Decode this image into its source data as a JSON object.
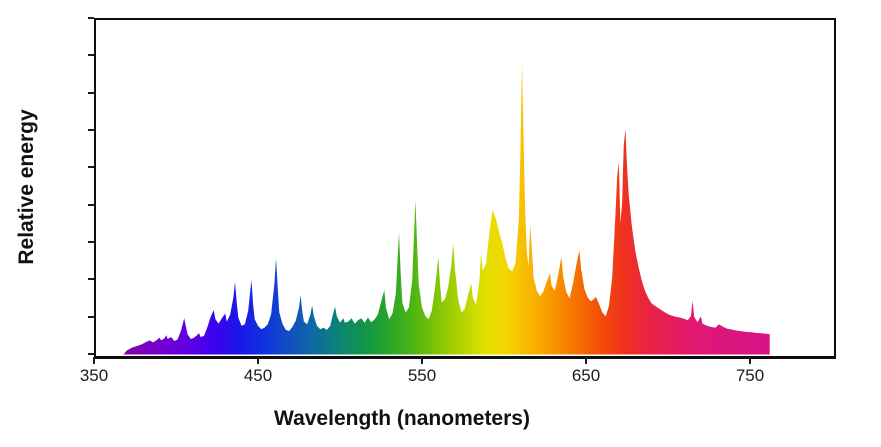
{
  "figure": {
    "xlabel": "Wavelength (nanometers)",
    "ylabel": "Relative energy"
  },
  "chart_data": {
    "type": "area",
    "title": "",
    "xlabel": "Wavelength (nanometers)",
    "ylabel": "Relative energy",
    "x_unit": "nanometers",
    "xlim": [
      350,
      800
    ],
    "ylim": [
      0,
      1
    ],
    "x_ticks": [
      350,
      450,
      550,
      650,
      750
    ],
    "y_ticks": {
      "labeled": false,
      "count": 10
    },
    "grid": false,
    "legend": null,
    "description": "Emission spectrum (relative energy vs wavelength), area filled with spectral rainbow gradient from violet through blue, green, yellow, orange, red to magenta-pink",
    "notable_peaks_nm": [
      405,
      423,
      436,
      446,
      461,
      476,
      527,
      536,
      546,
      560,
      569,
      586,
      593,
      611,
      616,
      635,
      646,
      670,
      674,
      715
    ],
    "points": [
      [
        368,
        0
      ],
      [
        370,
        0.012
      ],
      [
        373,
        0.02
      ],
      [
        376,
        0.025
      ],
      [
        379,
        0.03
      ],
      [
        382,
        0.038
      ],
      [
        384,
        0.042
      ],
      [
        386,
        0.036
      ],
      [
        388,
        0.042
      ],
      [
        390,
        0.05
      ],
      [
        391,
        0.042
      ],
      [
        393,
        0.048
      ],
      [
        394,
        0.057
      ],
      [
        395,
        0.046
      ],
      [
        397,
        0.052
      ],
      [
        399,
        0.04
      ],
      [
        401,
        0.045
      ],
      [
        403,
        0.07
      ],
      [
        405,
        0.108
      ],
      [
        406,
        0.085
      ],
      [
        407,
        0.06
      ],
      [
        409,
        0.046
      ],
      [
        411,
        0.05
      ],
      [
        413,
        0.058
      ],
      [
        414,
        0.064
      ],
      [
        415,
        0.052
      ],
      [
        417,
        0.055
      ],
      [
        419,
        0.08
      ],
      [
        421,
        0.11
      ],
      [
        423,
        0.132
      ],
      [
        424,
        0.105
      ],
      [
        426,
        0.092
      ],
      [
        428,
        0.108
      ],
      [
        430,
        0.122
      ],
      [
        431,
        0.098
      ],
      [
        433,
        0.118
      ],
      [
        435,
        0.17
      ],
      [
        436,
        0.216
      ],
      [
        437,
        0.155
      ],
      [
        438,
        0.11
      ],
      [
        440,
        0.085
      ],
      [
        442,
        0.09
      ],
      [
        444,
        0.13
      ],
      [
        446,
        0.222
      ],
      [
        447,
        0.15
      ],
      [
        448,
        0.105
      ],
      [
        450,
        0.085
      ],
      [
        452,
        0.075
      ],
      [
        454,
        0.08
      ],
      [
        456,
        0.09
      ],
      [
        458,
        0.12
      ],
      [
        460,
        0.21
      ],
      [
        461,
        0.286
      ],
      [
        462,
        0.2
      ],
      [
        463,
        0.125
      ],
      [
        465,
        0.09
      ],
      [
        467,
        0.073
      ],
      [
        469,
        0.07
      ],
      [
        471,
        0.082
      ],
      [
        473,
        0.1
      ],
      [
        475,
        0.14
      ],
      [
        476,
        0.176
      ],
      [
        477,
        0.128
      ],
      [
        478,
        0.098
      ],
      [
        480,
        0.09
      ],
      [
        482,
        0.12
      ],
      [
        483,
        0.146
      ],
      [
        484,
        0.115
      ],
      [
        486,
        0.085
      ],
      [
        488,
        0.075
      ],
      [
        490,
        0.08
      ],
      [
        492,
        0.073
      ],
      [
        494,
        0.085
      ],
      [
        496,
        0.125
      ],
      [
        497,
        0.142
      ],
      [
        498,
        0.115
      ],
      [
        500,
        0.095
      ],
      [
        502,
        0.108
      ],
      [
        503,
        0.095
      ],
      [
        505,
        0.098
      ],
      [
        507,
        0.108
      ],
      [
        509,
        0.092
      ],
      [
        511,
        0.102
      ],
      [
        513,
        0.108
      ],
      [
        515,
        0.094
      ],
      [
        517,
        0.11
      ],
      [
        519,
        0.096
      ],
      [
        521,
        0.104
      ],
      [
        523,
        0.118
      ],
      [
        525,
        0.155
      ],
      [
        527,
        0.192
      ],
      [
        528,
        0.14
      ],
      [
        530,
        0.105
      ],
      [
        532,
        0.122
      ],
      [
        534,
        0.18
      ],
      [
        536,
        0.362
      ],
      [
        537,
        0.24
      ],
      [
        538,
        0.155
      ],
      [
        540,
        0.125
      ],
      [
        542,
        0.14
      ],
      [
        544,
        0.22
      ],
      [
        546,
        0.46
      ],
      [
        547,
        0.33
      ],
      [
        548,
        0.21
      ],
      [
        550,
        0.14
      ],
      [
        552,
        0.115
      ],
      [
        554,
        0.105
      ],
      [
        556,
        0.13
      ],
      [
        558,
        0.2
      ],
      [
        560,
        0.29
      ],
      [
        561,
        0.21
      ],
      [
        562,
        0.155
      ],
      [
        564,
        0.165
      ],
      [
        566,
        0.2
      ],
      [
        568,
        0.27
      ],
      [
        569,
        0.33
      ],
      [
        570,
        0.26
      ],
      [
        572,
        0.165
      ],
      [
        574,
        0.125
      ],
      [
        576,
        0.135
      ],
      [
        578,
        0.175
      ],
      [
        580,
        0.212
      ],
      [
        581,
        0.17
      ],
      [
        583,
        0.148
      ],
      [
        585,
        0.22
      ],
      [
        586,
        0.3
      ],
      [
        587,
        0.25
      ],
      [
        589,
        0.27
      ],
      [
        591,
        0.36
      ],
      [
        593,
        0.43
      ],
      [
        595,
        0.405
      ],
      [
        597,
        0.365
      ],
      [
        599,
        0.33
      ],
      [
        601,
        0.285
      ],
      [
        603,
        0.255
      ],
      [
        605,
        0.248
      ],
      [
        607,
        0.272
      ],
      [
        609,
        0.4
      ],
      [
        610,
        0.6
      ],
      [
        611,
        0.868
      ],
      [
        612,
        0.62
      ],
      [
        613,
        0.41
      ],
      [
        614,
        0.3
      ],
      [
        615,
        0.26
      ],
      [
        616,
        0.39
      ],
      [
        617,
        0.31
      ],
      [
        618,
        0.23
      ],
      [
        620,
        0.19
      ],
      [
        622,
        0.173
      ],
      [
        624,
        0.188
      ],
      [
        626,
        0.215
      ],
      [
        628,
        0.242
      ],
      [
        629,
        0.205
      ],
      [
        631,
        0.19
      ],
      [
        633,
        0.235
      ],
      [
        635,
        0.29
      ],
      [
        636,
        0.235
      ],
      [
        638,
        0.185
      ],
      [
        640,
        0.168
      ],
      [
        642,
        0.21
      ],
      [
        644,
        0.265
      ],
      [
        646,
        0.31
      ],
      [
        647,
        0.255
      ],
      [
        649,
        0.195
      ],
      [
        651,
        0.17
      ],
      [
        653,
        0.158
      ],
      [
        655,
        0.166
      ],
      [
        656,
        0.172
      ],
      [
        658,
        0.15
      ],
      [
        660,
        0.125
      ],
      [
        662,
        0.114
      ],
      [
        664,
        0.145
      ],
      [
        666,
        0.23
      ],
      [
        668,
        0.42
      ],
      [
        669,
        0.53
      ],
      [
        670,
        0.572
      ],
      [
        671,
        0.39
      ],
      [
        672,
        0.45
      ],
      [
        673,
        0.62
      ],
      [
        674,
        0.672
      ],
      [
        675,
        0.56
      ],
      [
        676,
        0.48
      ],
      [
        678,
        0.38
      ],
      [
        680,
        0.31
      ],
      [
        682,
        0.26
      ],
      [
        684,
        0.22
      ],
      [
        686,
        0.19
      ],
      [
        688,
        0.168
      ],
      [
        690,
        0.152
      ],
      [
        692,
        0.145
      ],
      [
        695,
        0.135
      ],
      [
        698,
        0.126
      ],
      [
        701,
        0.118
      ],
      [
        704,
        0.113
      ],
      [
        707,
        0.11
      ],
      [
        710,
        0.106
      ],
      [
        712,
        0.102
      ],
      [
        714,
        0.115
      ],
      [
        715,
        0.16
      ],
      [
        716,
        0.112
      ],
      [
        718,
        0.096
      ],
      [
        720,
        0.114
      ],
      [
        721,
        0.092
      ],
      [
        723,
        0.087
      ],
      [
        726,
        0.082
      ],
      [
        729,
        0.08
      ],
      [
        731,
        0.09
      ],
      [
        733,
        0.084
      ],
      [
        736,
        0.077
      ],
      [
        739,
        0.074
      ],
      [
        742,
        0.071
      ],
      [
        745,
        0.069
      ],
      [
        748,
        0.067
      ],
      [
        751,
        0.066
      ],
      [
        754,
        0.064
      ],
      [
        757,
        0.063
      ],
      [
        760,
        0.062
      ],
      [
        762,
        0.06
      ],
      [
        762,
        0
      ]
    ],
    "wavelength_colors": [
      [
        368,
        "#8400A6"
      ],
      [
        380,
        "#7C00BE"
      ],
      [
        395,
        "#7000D6"
      ],
      [
        410,
        "#5B00E6"
      ],
      [
        425,
        "#3703EE"
      ],
      [
        440,
        "#1A1AE8"
      ],
      [
        455,
        "#0F35DC"
      ],
      [
        470,
        "#1150C0"
      ],
      [
        485,
        "#0F6BA0"
      ],
      [
        500,
        "#0C8472"
      ],
      [
        515,
        "#129648"
      ],
      [
        530,
        "#28A62A"
      ],
      [
        545,
        "#4FB512"
      ],
      [
        560,
        "#83C605"
      ],
      [
        575,
        "#B5D500"
      ],
      [
        588,
        "#E0E000"
      ],
      [
        600,
        "#F2D800"
      ],
      [
        612,
        "#F8BE00"
      ],
      [
        624,
        "#F8A400"
      ],
      [
        636,
        "#F78700"
      ],
      [
        648,
        "#F56703"
      ],
      [
        660,
        "#F34A08"
      ],
      [
        672,
        "#EF341C"
      ],
      [
        684,
        "#EB2738"
      ],
      [
        696,
        "#E71F52"
      ],
      [
        710,
        "#E21A68"
      ],
      [
        725,
        "#DE1778"
      ],
      [
        742,
        "#DA1582"
      ],
      [
        762,
        "#D61488"
      ]
    ],
    "axis_color": "#0e0e0e",
    "background_color": "#ffffff"
  }
}
